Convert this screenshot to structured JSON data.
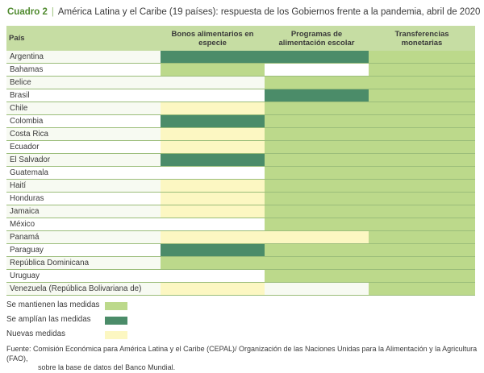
{
  "title": {
    "label": "Cuadro 2",
    "text": "América Latina y el Caribe (19 países): respuesta de los Gobiernos frente a la pandemia, abril de 2020"
  },
  "columns": {
    "country": "País",
    "c1": "Bonos alimentarios en especie",
    "c2": "Programas de alimentación escolar",
    "c3": "Transferencias monetarias"
  },
  "rows": [
    {
      "country": "Argentina",
      "c1": "expand",
      "c2": "expand",
      "c3": "maintain"
    },
    {
      "country": "Bahamas",
      "c1": "maintain",
      "c2": "none",
      "c3": "maintain"
    },
    {
      "country": "Belice",
      "c1": "none",
      "c2": "maintain",
      "c3": "maintain"
    },
    {
      "country": "Brasil",
      "c1": "none",
      "c2": "expand",
      "c3": "maintain"
    },
    {
      "country": "Chile",
      "c1": "new",
      "c2": "maintain",
      "c3": "maintain"
    },
    {
      "country": "Colombia",
      "c1": "expand",
      "c2": "maintain",
      "c3": "maintain"
    },
    {
      "country": "Costa Rica",
      "c1": "new",
      "c2": "maintain",
      "c3": "maintain"
    },
    {
      "country": "Ecuador",
      "c1": "new",
      "c2": "maintain",
      "c3": "maintain"
    },
    {
      "country": "El Salvador",
      "c1": "expand",
      "c2": "maintain",
      "c3": "maintain"
    },
    {
      "country": "Guatemala",
      "c1": "none",
      "c2": "maintain",
      "c3": "maintain"
    },
    {
      "country": "Haití",
      "c1": "new",
      "c2": "maintain",
      "c3": "maintain"
    },
    {
      "country": "Honduras",
      "c1": "new",
      "c2": "maintain",
      "c3": "maintain"
    },
    {
      "country": "Jamaica",
      "c1": "new",
      "c2": "maintain",
      "c3": "maintain"
    },
    {
      "country": "México",
      "c1": "none",
      "c2": "maintain",
      "c3": "maintain"
    },
    {
      "country": "Panamá",
      "c1": "new",
      "c2": "new",
      "c3": "maintain"
    },
    {
      "country": "Paraguay",
      "c1": "expand",
      "c2": "maintain",
      "c3": "maintain"
    },
    {
      "country": "República Dominicana",
      "c1": "maintain",
      "c2": "maintain",
      "c3": "maintain"
    },
    {
      "country": "Uruguay",
      "c1": "none",
      "c2": "maintain",
      "c3": "maintain"
    },
    {
      "country": "Venezuela (República Bolivariana de)",
      "c1": "new",
      "c2": "none",
      "c3": "maintain"
    }
  ],
  "legend": {
    "maintain": "Se mantienen las medidas",
    "expand": "Se amplían las medidas",
    "new": "Nuevas medidas"
  },
  "colors": {
    "maintain": "#bcd98b",
    "expand": "#4b8c69",
    "new": "#fcf7c2",
    "header": "#c6dda3",
    "accent": "#4f8a2e"
  },
  "source": {
    "line1": "Fuente: Comisión Económica para América Latina y el Caribe (CEPAL)/ Organización de las Naciones Unidas para la Alimentación y la Agricultura (FAO),",
    "line2": "sobre la base de datos del Banco Mundial."
  }
}
